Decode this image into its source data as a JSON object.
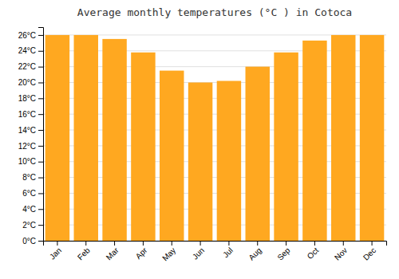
{
  "chart_data": {
    "type": "bar",
    "title": "Average monthly temperatures (°C ) in Cotoca",
    "categories": [
      "Jan",
      "Feb",
      "Mar",
      "Apr",
      "May",
      "Jun",
      "Jul",
      "Aug",
      "Sep",
      "Oct",
      "Nov",
      "Dec"
    ],
    "values": [
      26.0,
      26.0,
      25.5,
      23.8,
      21.5,
      20.0,
      20.2,
      22.0,
      23.8,
      25.3,
      26.0,
      26.0
    ],
    "color": "#FFA820",
    "ylim": [
      0,
      27
    ],
    "yticks": [
      {
        "value": 0,
        "label": "0°C"
      },
      {
        "value": 2,
        "label": "2°C"
      },
      {
        "value": 4,
        "label": "4°C"
      },
      {
        "value": 6,
        "label": "6°C"
      },
      {
        "value": 8,
        "label": "8°C"
      },
      {
        "value": 10,
        "label": "10°C"
      },
      {
        "value": 12,
        "label": "12°C"
      },
      {
        "value": 14,
        "label": "14°C"
      },
      {
        "value": 16,
        "label": "16°C"
      },
      {
        "value": 18,
        "label": "18°C"
      },
      {
        "value": 20,
        "label": "20°C"
      },
      {
        "value": 22,
        "label": "22°C"
      },
      {
        "value": 24,
        "label": "24°C"
      },
      {
        "value": 26,
        "label": "26°C"
      }
    ],
    "grid": true
  }
}
